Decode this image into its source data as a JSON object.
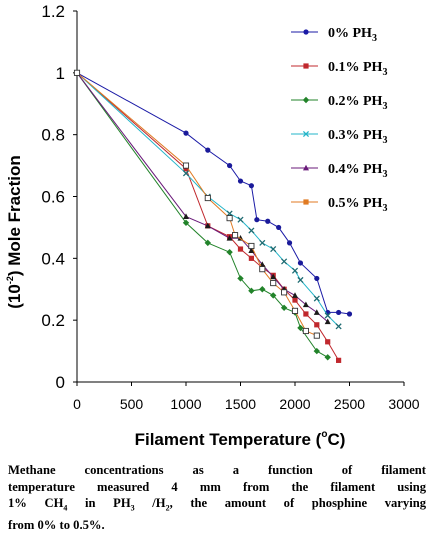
{
  "chart_data": {
    "type": "line",
    "xlabel": "Filament Temperature (",
    "xlabel_degree": "o",
    "xlabel_unit": "C)",
    "ylabel_prefix": "(10",
    "ylabel_exp": "-2",
    "ylabel_suffix": ") Mole Fraction",
    "xlim": [
      0,
      3000
    ],
    "ylim": [
      0,
      1.2
    ],
    "x_ticks": [
      "0",
      "500",
      "1000",
      "1500",
      "2000",
      "2500",
      "3000"
    ],
    "y_ticks": [
      "0",
      "0.2",
      "0.4",
      "0.6",
      "0.8",
      "1",
      "1.2"
    ],
    "grid": false,
    "legend_position": "top-right",
    "series": [
      {
        "name": "0% PH",
        "name_sub": "3",
        "color": "#1a1aa6",
        "marker": "circle",
        "x": [
          0,
          1000,
          1200,
          1400,
          1500,
          1600,
          1650,
          1750,
          1850,
          1950,
          2050,
          2200,
          2300,
          2400,
          2500
        ],
        "y": [
          1.0,
          0.805,
          0.75,
          0.7,
          0.65,
          0.635,
          0.525,
          0.52,
          0.5,
          0.45,
          0.385,
          0.335,
          0.225,
          0.225,
          0.22
        ]
      },
      {
        "name": "0.1% PH",
        "name_sub": "3",
        "color": "#c0282d",
        "marker": "square",
        "x": [
          0,
          1000,
          1200,
          1400,
          1500,
          1600,
          1700,
          1800,
          1900,
          2000,
          2100,
          2200,
          2300,
          2400
        ],
        "y": [
          1.0,
          0.69,
          0.505,
          0.47,
          0.43,
          0.4,
          0.37,
          0.345,
          0.3,
          0.265,
          0.22,
          0.185,
          0.13,
          0.07
        ]
      },
      {
        "name": "0.2% PH",
        "name_sub": "3",
        "color": "#22832a",
        "marker": "diamond",
        "x": [
          0,
          1000,
          1200,
          1400,
          1500,
          1600,
          1700,
          1800,
          1900,
          2000,
          2050,
          2200,
          2300
        ],
        "y": [
          1.0,
          0.515,
          0.45,
          0.42,
          0.335,
          0.295,
          0.3,
          0.28,
          0.24,
          0.225,
          0.175,
          0.1,
          0.08
        ]
      },
      {
        "name": "0.3% PH",
        "name_sub": "3",
        "color": "#23b5c9",
        "marker": "x",
        "x": [
          0,
          1000,
          1200,
          1400,
          1500,
          1600,
          1700,
          1800,
          1900,
          2000,
          2050,
          2200,
          2300,
          2400
        ],
        "y": [
          1.0,
          0.675,
          0.6,
          0.545,
          0.525,
          0.49,
          0.45,
          0.43,
          0.39,
          0.36,
          0.33,
          0.27,
          0.215,
          0.18
        ]
      },
      {
        "name": "0.4% PH",
        "name_sub": "3",
        "color": "#6a1a7a",
        "marker": "triangle",
        "x": [
          0,
          1000,
          1200,
          1400,
          1500,
          1600,
          1700,
          1800,
          1900,
          2000,
          2100,
          2200,
          2300
        ],
        "y": [
          1.0,
          0.535,
          0.505,
          0.465,
          0.465,
          0.425,
          0.38,
          0.34,
          0.3,
          0.28,
          0.25,
          0.225,
          0.195
        ]
      },
      {
        "name": "0.5% PH",
        "name_sub": "3",
        "color": "#e07a22",
        "marker": "open-square",
        "x": [
          0,
          1000,
          1200,
          1400,
          1450,
          1600,
          1700,
          1800,
          1900,
          2000,
          2100,
          2200
        ],
        "y": [
          1.0,
          0.7,
          0.595,
          0.53,
          0.475,
          0.44,
          0.365,
          0.32,
          0.29,
          0.23,
          0.165,
          0.15
        ]
      }
    ]
  },
  "caption": {
    "lines": [
      [
        "Methane concentrations as a function of filament"
      ],
      [
        "temperature measured 4 mm from the filament using"
      ],
      [
        "1% CH",
        {
          "sub": "4"
        },
        " in PH",
        {
          "sub": "3"
        },
        " /H",
        {
          "sub": "2"
        },
        ", the amount of phosphine varying"
      ],
      [
        "from 0% to 0.5%."
      ]
    ]
  }
}
